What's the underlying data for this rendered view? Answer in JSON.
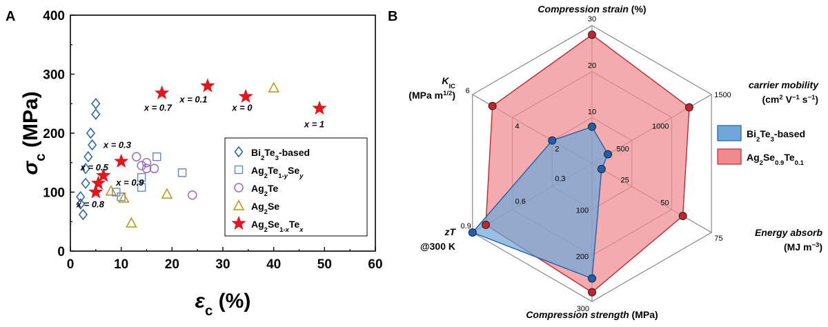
{
  "chart_data": [
    {
      "panel": "A",
      "type": "scatter",
      "xlabel": "ε",
      "xlabel_sub": "c",
      "xlabel_unit": " (%)",
      "ylabel": "σ",
      "ylabel_sub": "c",
      "ylabel_unit": " (MPa)",
      "xlim": [
        0,
        60
      ],
      "ylim": [
        0,
        400
      ],
      "xticks": [
        0,
        10,
        20,
        30,
        40,
        50,
        60
      ],
      "yticks": [
        0,
        100,
        200,
        300,
        400
      ],
      "series": [
        {
          "name": "Bi2Te3-based",
          "marker": "diamond",
          "color": "#1f5fb0",
          "label_parts": [
            {
              "t": "Bi"
            },
            {
              "t": "2",
              "sub": true
            },
            {
              "t": "Te"
            },
            {
              "t": "3",
              "sub": true
            },
            {
              "t": "-based"
            }
          ],
          "points": [
            [
              5,
              250
            ],
            [
              5,
              232
            ],
            [
              4,
              200
            ],
            [
              4.3,
              180
            ],
            [
              3.5,
              160
            ],
            [
              3,
              140
            ],
            [
              3,
              115
            ],
            [
              2,
              92
            ],
            [
              2,
              80
            ],
            [
              2.5,
              62
            ]
          ]
        },
        {
          "name": "Ag2Te1-ySey",
          "marker": "square",
          "color": "#6a8fc4",
          "label_parts": [
            {
              "t": "Ag"
            },
            {
              "t": "2",
              "sub": true
            },
            {
              "t": "Te"
            },
            {
              "t": "1-",
              "sub": true
            },
            {
              "t": "y",
              "sub": true,
              "italic": true
            },
            {
              "t": "Se"
            },
            {
              "t": "y",
              "sub": true,
              "italic": true
            }
          ],
          "points": [
            [
              17,
              160
            ],
            [
              22,
              133
            ],
            [
              14,
              125
            ],
            [
              14,
              108
            ],
            [
              9,
              100
            ],
            [
              10,
              92
            ]
          ]
        },
        {
          "name": "Ag2Te",
          "marker": "circle",
          "color": "#9a6bc0",
          "label_parts": [
            {
              "t": "Ag"
            },
            {
              "t": "2",
              "sub": true
            },
            {
              "t": "Te"
            }
          ],
          "points": [
            [
              13,
              160
            ],
            [
              14,
              145
            ],
            [
              15,
              150
            ],
            [
              15,
              140
            ],
            [
              16.5,
              140
            ],
            [
              24,
              95
            ]
          ]
        },
        {
          "name": "Ag2Se",
          "marker": "triangle",
          "color": "#b8960c",
          "label_parts": [
            {
              "t": "Ag"
            },
            {
              "t": "2",
              "sub": true
            },
            {
              "t": "Se"
            }
          ],
          "points": [
            [
              40,
              277
            ],
            [
              19,
              97
            ],
            [
              8,
              102
            ],
            [
              10.5,
              90
            ],
            [
              12,
              48
            ]
          ]
        },
        {
          "name": "Ag2Se1-xTex",
          "marker": "star",
          "color": "#e8141c",
          "label_parts": [
            {
              "t": "Ag"
            },
            {
              "t": "2",
              "sub": true
            },
            {
              "t": "Se"
            },
            {
              "t": "1-",
              "sub": true
            },
            {
              "t": "x",
              "sub": true,
              "italic": true
            },
            {
              "t": "Te"
            },
            {
              "t": "x",
              "sub": true,
              "italic": true
            }
          ],
          "points": [
            [
              18,
              268
            ],
            [
              27,
              280
            ],
            [
              34.5,
              262
            ],
            [
              49,
              242
            ],
            [
              10,
              152
            ],
            [
              6.5,
              128
            ],
            [
              5.5,
              115
            ],
            [
              5,
              100
            ]
          ]
        }
      ],
      "annotations": [
        {
          "text": "x = 0.7",
          "x": 14.5,
          "y": 238
        },
        {
          "text": "x = 0.1",
          "x": 21.5,
          "y": 252
        },
        {
          "text": "x = 0",
          "x": 31.8,
          "y": 238
        },
        {
          "text": "x = 1",
          "x": 46,
          "y": 210
        },
        {
          "text": "x = 0.3",
          "x": 6.5,
          "y": 175
        },
        {
          "text": "x = 0.5",
          "x": 2,
          "y": 137
        },
        {
          "text": "x = 0.9",
          "x": 9,
          "y": 111
        },
        {
          "text": "x = 0.8",
          "x": 1.2,
          "y": 74
        }
      ]
    },
    {
      "panel": "B",
      "type": "radar",
      "axes": [
        {
          "title_parts": [
            {
              "t": "Compression strain",
              "italic": true
            },
            {
              "t": " (%)"
            }
          ],
          "ticks": [
            "10",
            "20",
            "30"
          ],
          "max": 30
        },
        {
          "title_lines": [
            [
              {
                "t": "carrier mobility",
                "italic": true
              }
            ],
            [
              {
                "t": "(cm"
              },
              {
                "t": "2",
                "sup": true
              },
              {
                "t": " V"
              },
              {
                "t": "−1",
                "sup": true
              },
              {
                "t": " s"
              },
              {
                "t": "−1",
                "sup": true
              },
              {
                "t": ")"
              }
            ]
          ],
          "ticks": [
            "500",
            "1000",
            "1500"
          ],
          "max": 1500
        },
        {
          "title_lines": [
            [
              {
                "t": "Energy absorb",
                "italic": true
              }
            ],
            [
              {
                "t": "(MJ m"
              },
              {
                "t": "−3",
                "sup": true
              },
              {
                "t": ")"
              }
            ]
          ],
          "ticks": [
            "25",
            "50",
            "75"
          ],
          "max": 75
        },
        {
          "title_parts": [
            {
              "t": "Compression strength",
              "italic": true
            },
            {
              "t": " (MPa)"
            }
          ],
          "ticks": [
            "100",
            "200",
            "300"
          ],
          "max": 300
        },
        {
          "title_lines": [
            [
              {
                "t": "zT",
                "italic": true
              }
            ],
            [
              {
                "t": "@300 K"
              }
            ]
          ],
          "ticks": [
            "0.3",
            "0.6",
            "0.9"
          ],
          "max": 0.9
        },
        {
          "title_lines": [
            [
              {
                "t": "K",
                "italic": true
              },
              {
                "t": "IC",
                "sub": true
              }
            ],
            [
              {
                "t": "(MPa m"
              },
              {
                "t": "1/2",
                "sup": true
              },
              {
                "t": ")"
              }
            ]
          ],
          "ticks": [
            "2",
            "4",
            "6"
          ],
          "max": 6
        }
      ],
      "series": [
        {
          "name": "Ag2Se0.9Te0.1",
          "color": "#c0262d",
          "fill": "#f08a8e",
          "label_parts": [
            {
              "t": "Ag"
            },
            {
              "t": "2",
              "sub": true
            },
            {
              "t": "Se"
            },
            {
              "t": "0.9",
              "sub": true
            },
            {
              "t": "Te"
            },
            {
              "t": "0.1",
              "sub": true
            }
          ],
          "values": [
            28,
            1220,
            57,
            280,
            0.8,
            5
          ]
        },
        {
          "name": "Bi2Te3-based",
          "color": "#1f5fb0",
          "fill": "#6fa8d8",
          "label_parts": [
            {
              "t": "Bi"
            },
            {
              "t": "2",
              "sub": true
            },
            {
              "t": "Te"
            },
            {
              "t": "3",
              "sub": true
            },
            {
              "t": "-based"
            }
          ],
          "values": [
            8,
            200,
            6,
            250,
            0.9,
            2
          ]
        }
      ]
    }
  ],
  "labels": {
    "panel_a": "A",
    "panel_b": "B"
  }
}
